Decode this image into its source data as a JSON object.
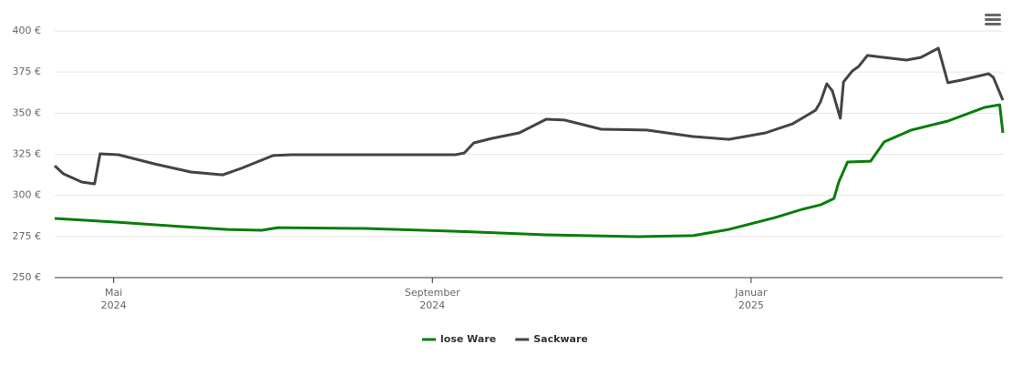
{
  "chart_data": {
    "type": "line",
    "series": [
      {
        "name": "lose Ware",
        "color": "#0a7d0a",
        "x": [
          3.26,
          4.0,
          4.86,
          5.43,
          5.86,
          6.06,
          7.15,
          8.29,
          9.43,
          10.58,
          11.27,
          11.72,
          12.3,
          12.64,
          12.87,
          13.04,
          13.1,
          13.21,
          13.5,
          13.67,
          14.01,
          14.47,
          14.93,
          15.12,
          15.16
        ],
        "values": [
          286.0,
          283.8,
          281.0,
          279.3,
          278.8,
          280.4,
          279.9,
          278.2,
          276.0,
          274.9,
          275.5,
          279.3,
          286.5,
          291.5,
          294.2,
          298.1,
          308.1,
          320.3,
          320.8,
          332.5,
          339.7,
          345.2,
          353.5,
          355.1,
          338.0
        ]
      },
      {
        "name": "Sackware",
        "color": "#434348",
        "x": [
          3.26,
          3.37,
          3.6,
          3.76,
          3.83,
          4.06,
          4.51,
          4.97,
          5.37,
          5.6,
          6.0,
          6.23,
          8.29,
          8.4,
          8.52,
          8.75,
          9.09,
          9.43,
          9.66,
          10.12,
          10.69,
          11.27,
          11.72,
          12.18,
          12.52,
          12.81,
          12.87,
          12.95,
          13.02,
          13.12,
          13.16,
          13.27,
          13.35,
          13.46,
          13.67,
          13.95,
          14.13,
          14.35,
          14.47,
          14.64,
          14.98,
          15.04,
          15.16
        ],
        "values": [
          318.0,
          313.1,
          308.1,
          307.0,
          325.3,
          324.7,
          319.2,
          314.2,
          312.5,
          316.4,
          324.2,
          324.7,
          324.7,
          325.8,
          331.9,
          334.7,
          338.0,
          346.3,
          345.8,
          340.2,
          339.7,
          335.8,
          334.1,
          338.0,
          343.5,
          351.8,
          356.8,
          367.9,
          363.5,
          346.9,
          369.0,
          375.6,
          378.4,
          385.1,
          383.9,
          382.3,
          383.9,
          389.5,
          368.5,
          370.1,
          374.0,
          371.8,
          357.9
        ]
      }
    ],
    "xlim": [
      3.26,
      15.16
    ],
    "xticks": [
      {
        "value": 4,
        "label": "Mai\n2024"
      },
      {
        "value": 8,
        "label": "September\n2024"
      },
      {
        "value": 12,
        "label": "Januar\n2025"
      }
    ],
    "ylim": [
      250,
      400
    ],
    "yticks": [
      {
        "value": 250,
        "label": "250 €"
      },
      {
        "value": 275,
        "label": "275 €"
      },
      {
        "value": 300,
        "label": "300 €"
      },
      {
        "value": 325,
        "label": "325 €"
      },
      {
        "value": 350,
        "label": "350 €"
      },
      {
        "value": 375,
        "label": "375 €"
      },
      {
        "value": 400,
        "label": "400 €"
      }
    ],
    "grid": true
  }
}
